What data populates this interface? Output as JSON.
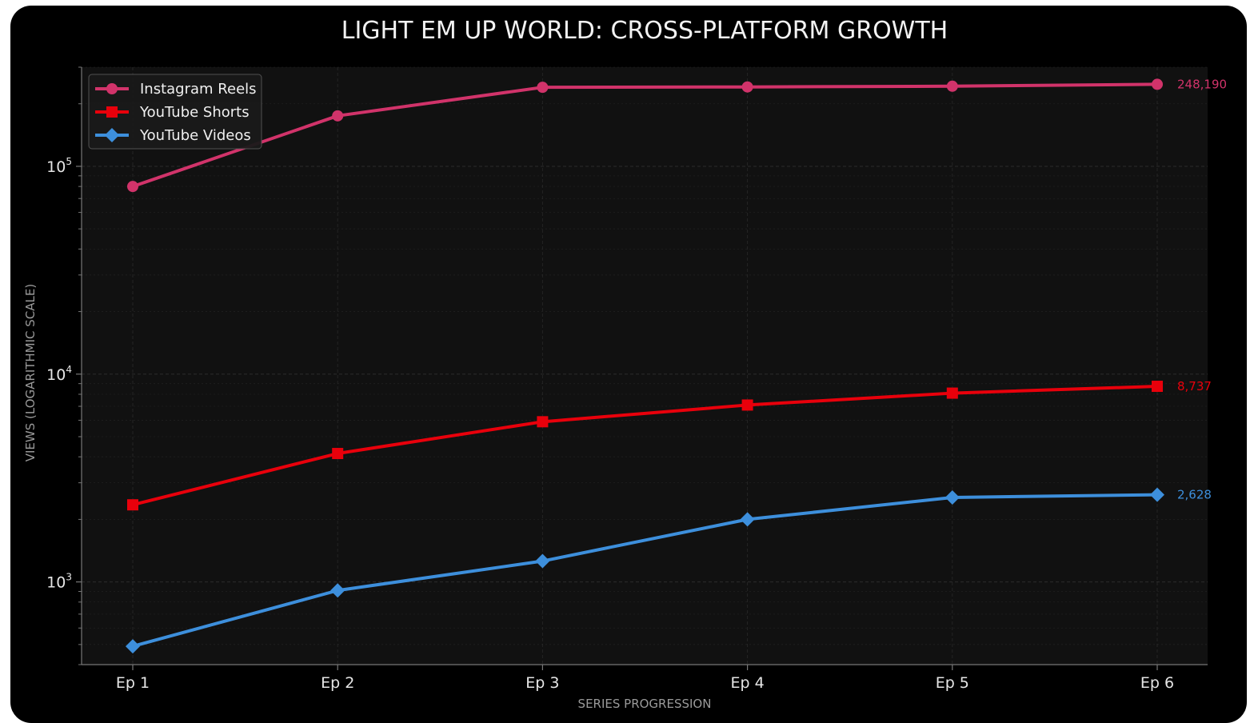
{
  "colors": {
    "card_background": "#000000",
    "plot_background": "#111111",
    "grid": "#2e2e2e",
    "axis": "#777777",
    "text": "#e6e6e6"
  },
  "chart_data": {
    "type": "line",
    "title": "LIGHT EM UP WORLD: CROSS-PLATFORM GROWTH",
    "xlabel": "SERIES PROGRESSION",
    "ylabel": "VIEWS (LOGARITHMIC SCALE)",
    "yscale": "log",
    "ylim": [
      400,
      300000
    ],
    "categories": [
      "Ep 1",
      "Ep 2",
      "Ep 3",
      "Ep 4",
      "Ep 5",
      "Ep 6"
    ],
    "yticks": [
      {
        "value": 1000,
        "base": "10",
        "exp": "3"
      },
      {
        "value": 10000,
        "base": "10",
        "exp": "4"
      },
      {
        "value": 100000,
        "base": "10",
        "exp": "5"
      }
    ],
    "grid": true,
    "legend_position": "top-left",
    "series": [
      {
        "name": "Instagram Reels",
        "color": "#d1336a",
        "marker": "circle",
        "values": [
          80000,
          175000,
          240000,
          241000,
          243000,
          248190
        ],
        "end_label": "248,190"
      },
      {
        "name": "YouTube Shorts",
        "color": "#e8000b",
        "marker": "square",
        "values": [
          2350,
          4150,
          5900,
          7100,
          8100,
          8737
        ],
        "end_label": "8,737"
      },
      {
        "name": "YouTube Videos",
        "color": "#3d8fdc",
        "marker": "diamond",
        "values": [
          490,
          910,
          1260,
          2000,
          2550,
          2628
        ],
        "end_label": "2,628"
      }
    ]
  }
}
